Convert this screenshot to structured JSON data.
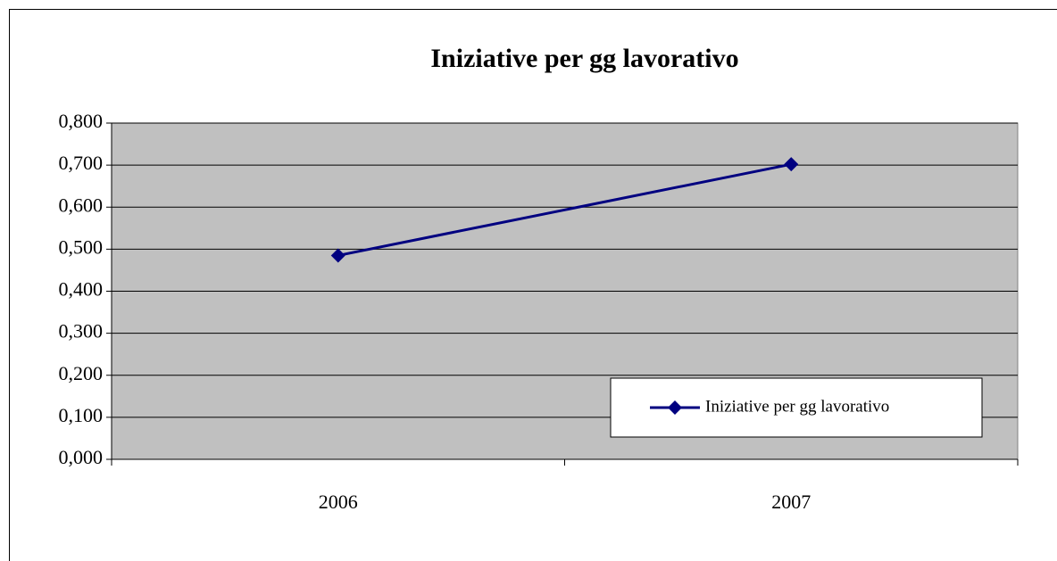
{
  "chart_data": {
    "type": "line",
    "title": "Iniziative per gg lavorativo",
    "categories": [
      "2006",
      "2007"
    ],
    "series": [
      {
        "name": "Iniziative per gg lavorativo",
        "color": "#000080",
        "values": [
          0.485,
          0.702
        ]
      }
    ],
    "ylim": [
      0,
      0.8
    ],
    "yticks": [
      {
        "value": 0,
        "label": "0,000"
      },
      {
        "value": 0.1,
        "label": "0,100"
      },
      {
        "value": 0.2,
        "label": "0,200"
      },
      {
        "value": 0.3,
        "label": "0,300"
      },
      {
        "value": 0.4,
        "label": "0,400"
      },
      {
        "value": 0.5,
        "label": "0,500"
      },
      {
        "value": 0.6,
        "label": "0,600"
      },
      {
        "value": 0.7,
        "label": "0,700"
      },
      {
        "value": 0.8,
        "label": "0,800"
      }
    ],
    "grid": true,
    "legend": "lower right",
    "plot_background": "#c0c0c0"
  }
}
